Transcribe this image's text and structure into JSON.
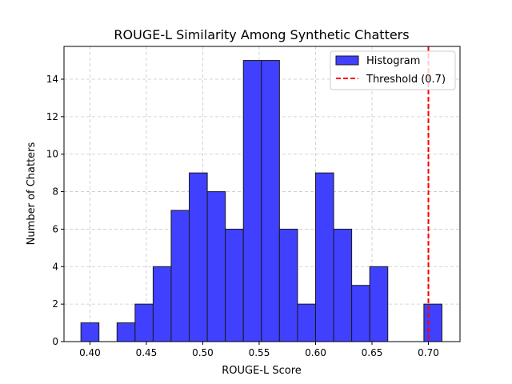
{
  "chart_data": {
    "type": "bar",
    "title": "ROUGE-L Similarity Among Synthetic Chatters",
    "xlabel": "ROUGE-L Score",
    "ylabel": "Number of Chatters",
    "xlim": [
      0.377,
      0.728
    ],
    "ylim": [
      0,
      15.75
    ],
    "xticks": [
      0.4,
      0.45,
      0.5,
      0.55,
      0.6,
      0.65,
      0.7
    ],
    "xtick_labels": [
      "0.40",
      "0.45",
      "0.50",
      "0.55",
      "0.60",
      "0.65",
      "0.70"
    ],
    "yticks": [
      0,
      2,
      4,
      6,
      8,
      10,
      12,
      14
    ],
    "ytick_labels": [
      "0",
      "2",
      "4",
      "6",
      "8",
      "10",
      "12",
      "14"
    ],
    "bin_width": 0.016,
    "bins": [
      {
        "left": 0.392,
        "count": 1
      },
      {
        "left": 0.408,
        "count": 0
      },
      {
        "left": 0.424,
        "count": 1
      },
      {
        "left": 0.44,
        "count": 2
      },
      {
        "left": 0.456,
        "count": 4
      },
      {
        "left": 0.472,
        "count": 7
      },
      {
        "left": 0.488,
        "count": 9
      },
      {
        "left": 0.504,
        "count": 8
      },
      {
        "left": 0.52,
        "count": 6
      },
      {
        "left": 0.536,
        "count": 15
      },
      {
        "left": 0.552,
        "count": 15
      },
      {
        "left": 0.568,
        "count": 6
      },
      {
        "left": 0.584,
        "count": 2
      },
      {
        "left": 0.6,
        "count": 9
      },
      {
        "left": 0.616,
        "count": 6
      },
      {
        "left": 0.632,
        "count": 3
      },
      {
        "left": 0.648,
        "count": 4
      },
      {
        "left": 0.664,
        "count": 0
      },
      {
        "left": 0.68,
        "count": 0
      },
      {
        "left": 0.696,
        "count": 2
      }
    ],
    "threshold": {
      "value": 0.7,
      "label": "Threshold (0.7)",
      "color": "#ff0000"
    },
    "bar_color": "#4040ff",
    "bar_edge_color": "#1a1a1a",
    "grid": true,
    "legend": {
      "position": "top-right",
      "entries": [
        "Histogram",
        "Threshold (0.7)"
      ]
    }
  }
}
